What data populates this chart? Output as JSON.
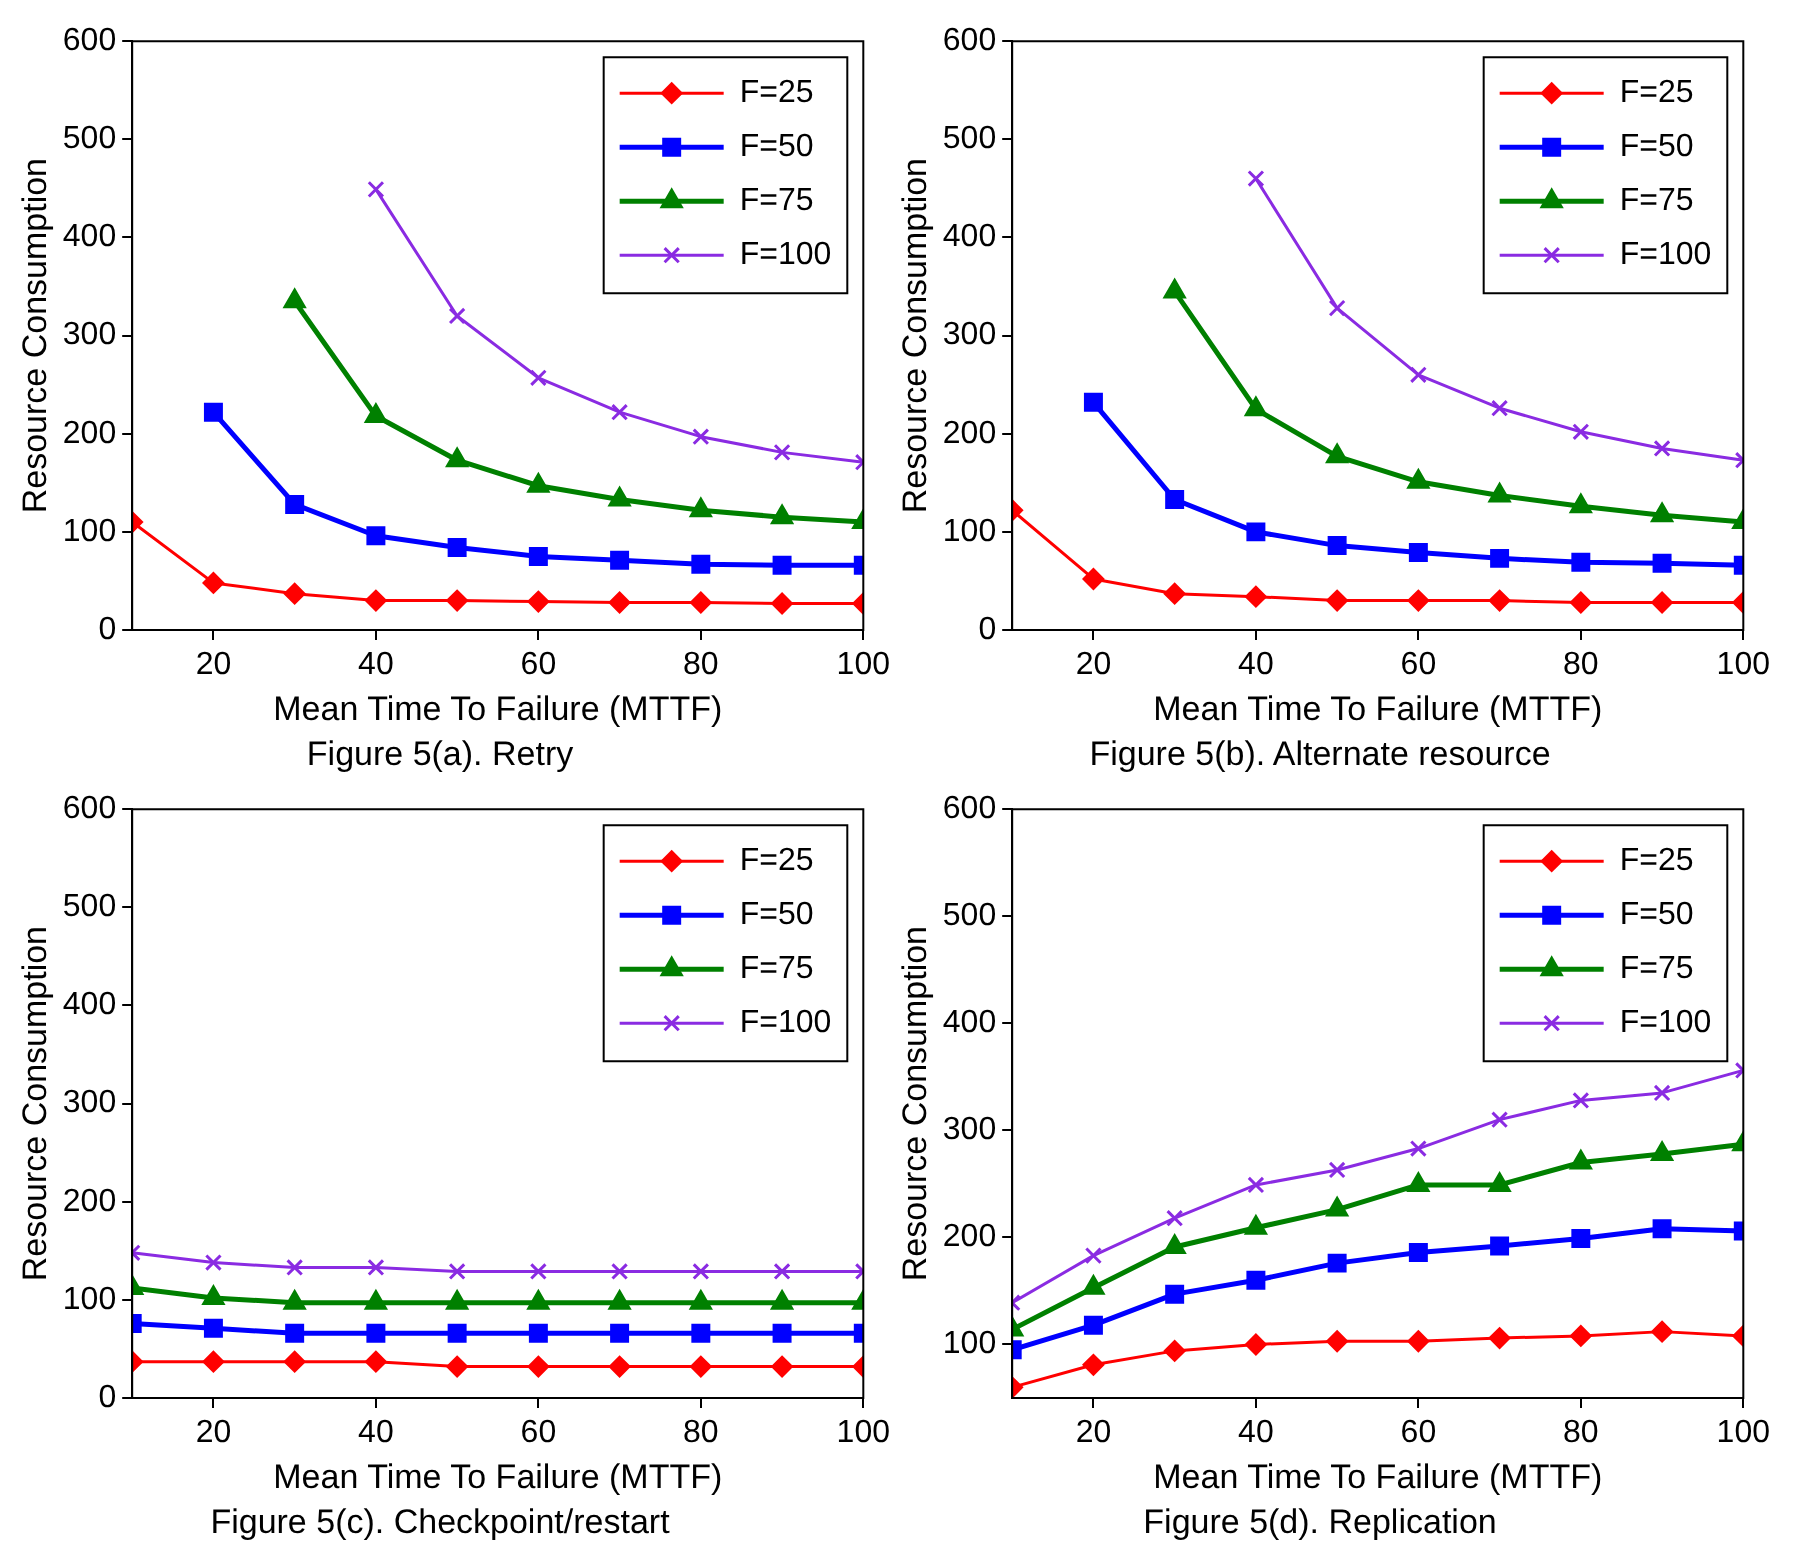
{
  "chart_data": [
    {
      "type": "line",
      "title": "Figure 5(a). Retry",
      "xlabel": "Mean Time To Failure (MTTF)",
      "ylabel": "Resource Consumption",
      "x": [
        10,
        20,
        30,
        40,
        50,
        60,
        70,
        80,
        90,
        100
      ],
      "xlim": [
        10,
        100
      ],
      "xticks": [
        20,
        40,
        60,
        80,
        100
      ],
      "ylim": [
        0,
        600
      ],
      "yticks": [
        0,
        100,
        200,
        300,
        400,
        500,
        600
      ],
      "grid": false,
      "legend": "top right",
      "line_style": "solid",
      "series": [
        {
          "name": "F=25",
          "color": "#ff0000",
          "marker": "diamond",
          "values": [
            110,
            48,
            37,
            30,
            30,
            29,
            28,
            28,
            27,
            27
          ]
        },
        {
          "name": "F=50",
          "color": "#0000ff",
          "marker": "square",
          "values": [
            null,
            222,
            128,
            96,
            84,
            75,
            71,
            67,
            66,
            66
          ]
        },
        {
          "name": "F=75",
          "color": "#008000",
          "marker": "triangle",
          "values": [
            null,
            null,
            335,
            218,
            173,
            147,
            133,
            122,
            115,
            110
          ]
        },
        {
          "name": "F=100",
          "color": "#8a2be2",
          "marker": "cross",
          "values": [
            null,
            null,
            null,
            449,
            320,
            257,
            222,
            197,
            181,
            171
          ]
        }
      ]
    },
    {
      "type": "line",
      "title": "Figure 5(b). Alternate resource",
      "xlabel": "Mean Time To Failure (MTTF)",
      "ylabel": "Resource Consumption",
      "x": [
        10,
        20,
        30,
        40,
        50,
        60,
        70,
        80,
        90,
        100
      ],
      "xlim": [
        10,
        100
      ],
      "xticks": [
        20,
        40,
        60,
        80,
        100
      ],
      "ylim": [
        0,
        600
      ],
      "yticks": [
        0,
        100,
        200,
        300,
        400,
        500,
        600
      ],
      "grid": false,
      "legend": "top right",
      "line_style": "solid",
      "series": [
        {
          "name": "F=25",
          "color": "#ff0000",
          "marker": "diamond",
          "values": [
            122,
            52,
            37,
            34,
            30,
            30,
            30,
            28,
            28,
            28
          ]
        },
        {
          "name": "F=50",
          "color": "#0000ff",
          "marker": "square",
          "values": [
            null,
            232,
            133,
            100,
            86,
            79,
            73,
            69,
            68,
            66
          ]
        },
        {
          "name": "F=75",
          "color": "#008000",
          "marker": "triangle",
          "values": [
            null,
            null,
            345,
            225,
            177,
            151,
            137,
            126,
            117,
            110
          ]
        },
        {
          "name": "F=100",
          "color": "#8a2be2",
          "marker": "cross",
          "values": [
            null,
            null,
            null,
            460,
            328,
            260,
            226,
            202,
            185,
            173
          ]
        }
      ]
    },
    {
      "type": "line",
      "title": "Figure 5(c). Checkpoint/restart",
      "xlabel": "Mean Time To Failure (MTTF)",
      "ylabel": "Resource Consumption",
      "x": [
        10,
        20,
        30,
        40,
        50,
        60,
        70,
        80,
        90,
        100
      ],
      "xlim": [
        10,
        100
      ],
      "xticks": [
        20,
        40,
        60,
        80,
        100
      ],
      "ylim": [
        0,
        600
      ],
      "yticks": [
        0,
        100,
        200,
        300,
        400,
        500,
        600
      ],
      "grid": false,
      "legend": "top right",
      "line_style": "solid",
      "series": [
        {
          "name": "F=25",
          "color": "#ff0000",
          "marker": "diamond",
          "values": [
            37,
            37,
            37,
            37,
            32,
            32,
            32,
            32,
            32,
            32
          ]
        },
        {
          "name": "F=50",
          "color": "#0000ff",
          "marker": "square",
          "values": [
            76,
            71,
            66,
            66,
            66,
            66,
            66,
            66,
            66,
            66
          ]
        },
        {
          "name": "F=75",
          "color": "#008000",
          "marker": "triangle",
          "values": [
            112,
            102,
            97,
            97,
            97,
            97,
            97,
            97,
            97,
            97
          ]
        },
        {
          "name": "F=100",
          "color": "#8a2be2",
          "marker": "cross",
          "values": [
            148,
            138,
            133,
            133,
            129,
            129,
            129,
            129,
            129,
            129
          ]
        }
      ]
    },
    {
      "type": "line",
      "title": "Figure 5(d). Replication",
      "xlabel": "Mean Time To Failure (MTTF)",
      "ylabel": "Resource Consumption",
      "x": [
        10,
        20,
        30,
        40,
        50,
        60,
        70,
        80,
        90,
        100
      ],
      "xlim": [
        10,
        100
      ],
      "xticks": [
        20,
        40,
        60,
        80,
        100
      ],
      "ylim": [
        50,
        600
      ],
      "yticks": [
        100,
        200,
        300,
        400,
        500,
        600
      ],
      "grid": false,
      "legend": "top right",
      "line_style": "solid",
      "series": [
        {
          "name": "F=25",
          "color": "#ff0000",
          "marker": "diamond",
          "values": [
            60,
            81,
            94,
            100,
            103,
            103,
            106,
            108,
            112,
            108
          ]
        },
        {
          "name": "F=50",
          "color": "#0000ff",
          "marker": "square",
          "values": [
            95,
            118,
            147,
            160,
            176,
            186,
            192,
            199,
            208,
            206
          ]
        },
        {
          "name": "F=75",
          "color": "#008000",
          "marker": "triangle",
          "values": [
            114,
            153,
            191,
            209,
            226,
            249,
            249,
            270,
            278,
            287
          ]
        },
        {
          "name": "F=100",
          "color": "#8a2be2",
          "marker": "cross",
          "values": [
            139,
            183,
            218,
            249,
            263,
            283,
            310,
            328,
            335,
            356
          ]
        }
      ]
    }
  ]
}
